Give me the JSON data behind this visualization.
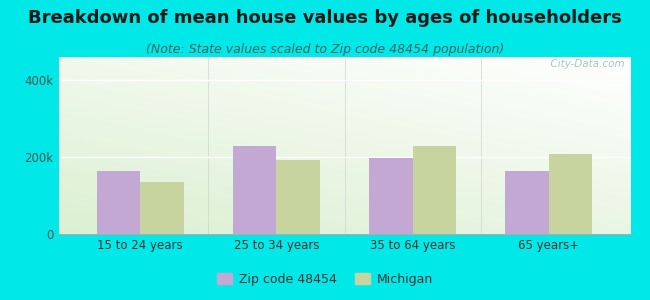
{
  "title": "Breakdown of mean house values by ages of householders",
  "subtitle": "(Note: State values scaled to Zip code 48454 population)",
  "categories": [
    "15 to 24 years",
    "25 to 34 years",
    "35 to 64 years",
    "65 years+"
  ],
  "zip_values": [
    165000,
    228000,
    197000,
    165000
  ],
  "mi_values": [
    135000,
    192000,
    228000,
    208000
  ],
  "zip_color": "#c4a8d4",
  "mi_color": "#c8d4a0",
  "zip_label": "Zip code 48454",
  "mi_label": "Michigan",
  "ylim": [
    0,
    460000
  ],
  "yticks": [
    0,
    200000,
    400000
  ],
  "ytick_labels": [
    "0",
    "200k",
    "400k"
  ],
  "background_color": "#00e8e8",
  "bar_width": 0.32,
  "title_fontsize": 13,
  "subtitle_fontsize": 9,
  "watermark": "  City-Data.com"
}
